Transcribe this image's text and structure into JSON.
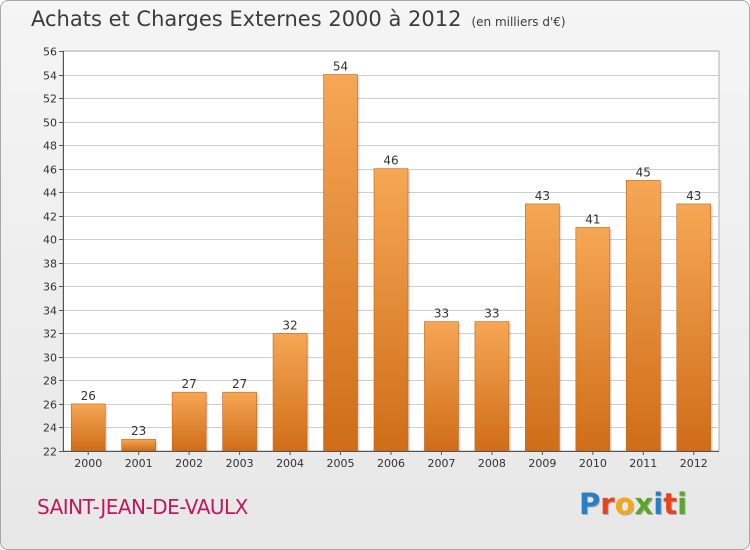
{
  "header": {
    "title": "Achats et Charges Externes 2000 à 2012",
    "subtitle": "(en milliers d'€)"
  },
  "footer": {
    "city": "SAINT-JEAN-DE-VAULX",
    "logo": {
      "text": "Proxiti",
      "colors": [
        "#2a7fc4",
        "#e8431f",
        "#f2a81d",
        "#5aa52a",
        "#2a7fc4",
        "#e8431f",
        "#5aa52a"
      ]
    }
  },
  "colors": {
    "bar_top": "#f6a755",
    "bar_bottom": "#cf6d18",
    "grid": "#cfcfcf",
    "axis": "#555555"
  },
  "chart_data": {
    "type": "bar",
    "categories": [
      "2000",
      "2001",
      "2002",
      "2003",
      "2004",
      "2005",
      "2006",
      "2007",
      "2008",
      "2009",
      "2010",
      "2011",
      "2012"
    ],
    "values": [
      26,
      23,
      27,
      27,
      32,
      54,
      46,
      33,
      33,
      43,
      41,
      45,
      43
    ],
    "ylim": [
      22,
      56
    ],
    "ytick_step": 2,
    "grid": true,
    "data_labels": true
  }
}
